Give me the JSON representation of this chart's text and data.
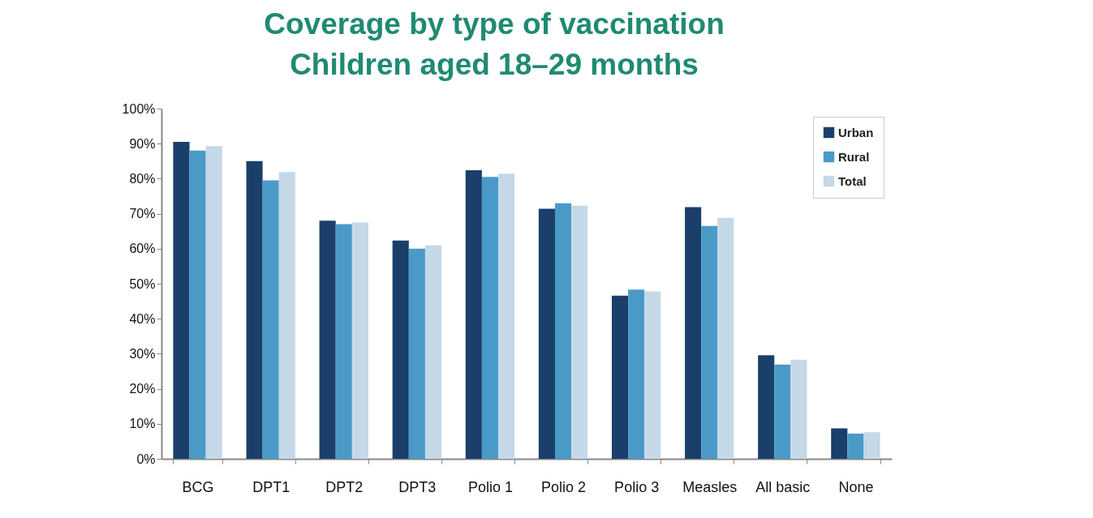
{
  "chart_data": {
    "type": "bar",
    "title": "Coverage by type of vaccination\nChildren aged 18–29 months",
    "categories": [
      "BCG",
      "DPT1",
      "DPT2",
      "DPT3",
      "Polio 1",
      "Polio 2",
      "Polio 3",
      "Measles",
      "All basic",
      "None"
    ],
    "series": [
      {
        "name": "Urban",
        "color": "#1a3f6b",
        "values": [
          90.5,
          85,
          68,
          62.3,
          82.4,
          71.4,
          46.6,
          71.9,
          29.6,
          8.7
        ]
      },
      {
        "name": "Rural",
        "color": "#4a9ac8",
        "values": [
          88,
          79.5,
          67,
          60,
          80.5,
          73,
          48.3,
          66.5,
          26.9,
          7.2
        ]
      },
      {
        "name": "Total",
        "color": "#c5d8e8",
        "values": [
          89.3,
          81.9,
          67.5,
          61,
          81.4,
          72.3,
          47.8,
          68.8,
          28.3,
          7.6
        ]
      }
    ],
    "ylim": [
      0,
      100
    ],
    "yticks": [
      {
        "value": 0,
        "label": "0%"
      },
      {
        "value": 10,
        "label": "10%"
      },
      {
        "value": 20,
        "label": "20%"
      },
      {
        "value": 30,
        "label": "30%"
      },
      {
        "value": 40,
        "label": "40%"
      },
      {
        "value": 50,
        "label": "50%"
      },
      {
        "value": 60,
        "label": "60%"
      },
      {
        "value": 70,
        "label": "70%"
      },
      {
        "value": 80,
        "label": "80%"
      },
      {
        "value": 90,
        "label": "90%"
      },
      {
        "value": 100,
        "label": "100%"
      }
    ],
    "grid": false,
    "legend": "top right"
  }
}
